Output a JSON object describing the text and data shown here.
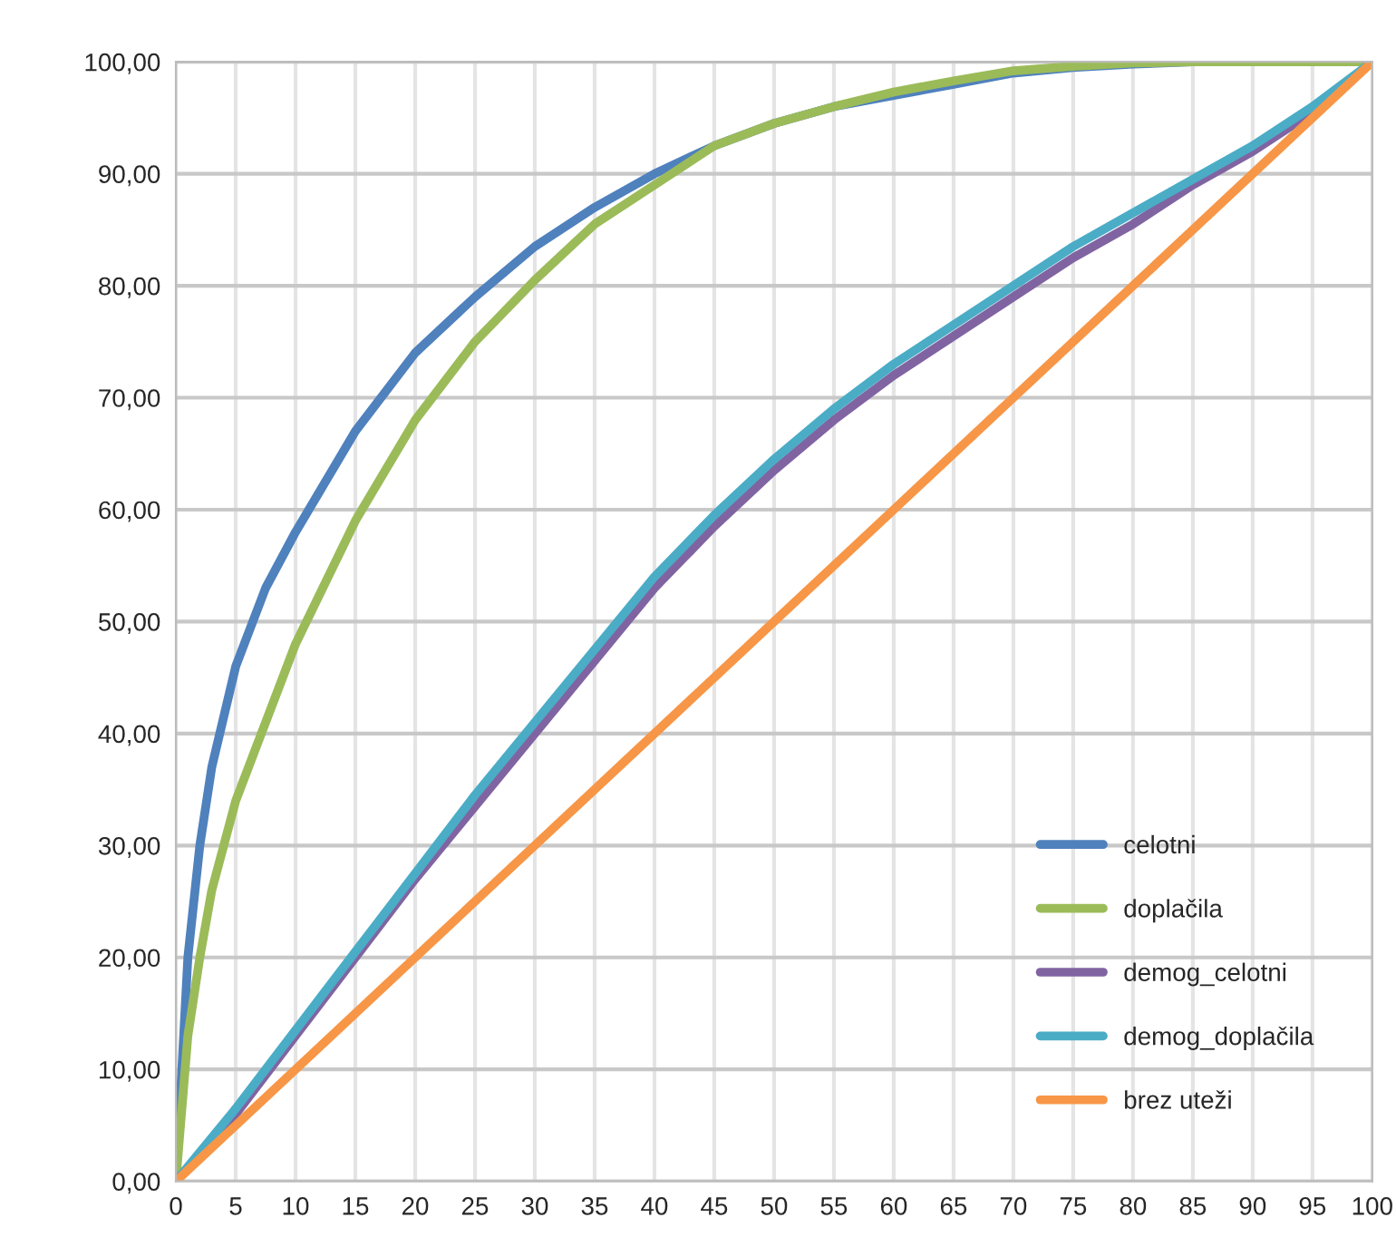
{
  "chart_data": {
    "type": "line",
    "x": [
      0,
      1,
      2,
      3,
      5,
      7.5,
      10,
      15,
      20,
      25,
      30,
      35,
      40,
      45,
      50,
      55,
      60,
      65,
      70,
      75,
      80,
      85,
      90,
      95,
      100
    ],
    "series": [
      {
        "name": "celotni",
        "color": "#4f81bd",
        "values": [
          0,
          20,
          30,
          37,
          46,
          53,
          58,
          67,
          74,
          79,
          83.5,
          87,
          90,
          92.5,
          94.5,
          96,
          97,
          98,
          99,
          99.5,
          99.8,
          100,
          100,
          100,
          100
        ]
      },
      {
        "name": "doplačila",
        "color": "#9bbb59",
        "values": [
          0,
          13,
          20,
          26,
          34,
          41,
          48,
          59,
          68,
          75,
          80.5,
          85.5,
          89,
          92.5,
          94.5,
          96,
          97.3,
          98.3,
          99.2,
          99.6,
          99.9,
          100,
          100,
          100,
          100
        ]
      },
      {
        "name": "demog_celotni",
        "color": "#8064a2",
        "x": [
          0,
          5,
          10,
          15,
          20,
          25,
          30,
          35,
          40,
          45,
          50,
          55,
          60,
          65,
          70,
          75,
          80,
          85,
          90,
          95,
          100
        ],
        "values": [
          0,
          6,
          13,
          20,
          27,
          33.5,
          40,
          46.5,
          53,
          58.5,
          63.5,
          68,
          72,
          75.5,
          79,
          82.5,
          85.5,
          89,
          92,
          95.5,
          100
        ]
      },
      {
        "name": "demog_doplačila",
        "color": "#4bacc6",
        "x": [
          0,
          5,
          10,
          15,
          20,
          25,
          30,
          35,
          40,
          45,
          50,
          55,
          60,
          65,
          70,
          75,
          80,
          85,
          90,
          95,
          100
        ],
        "values": [
          0,
          6.5,
          13.5,
          20.5,
          27.5,
          34.5,
          41,
          47.5,
          54,
          59.5,
          64.5,
          69,
          73,
          76.5,
          80,
          83.5,
          86.5,
          89.5,
          92.5,
          96,
          100
        ]
      },
      {
        "name": "brez uteži",
        "color": "#f79646",
        "x": [
          0,
          10,
          20,
          30,
          40,
          50,
          60,
          70,
          80,
          90,
          100
        ],
        "values": [
          0,
          10,
          20,
          30,
          40,
          50,
          60,
          70,
          80,
          90,
          100
        ]
      }
    ],
    "xlim": [
      0,
      100
    ],
    "xticks": [
      0,
      5,
      10,
      15,
      20,
      25,
      30,
      35,
      40,
      45,
      50,
      55,
      60,
      65,
      70,
      75,
      80,
      85,
      90,
      95,
      100
    ],
    "ylim": [
      0,
      100
    ],
    "yticks": [
      {
        "value": 0,
        "label": "0,00"
      },
      {
        "value": 10,
        "label": "10,00"
      },
      {
        "value": 20,
        "label": "20,00"
      },
      {
        "value": 30,
        "label": "30,00"
      },
      {
        "value": 40,
        "label": "40,00"
      },
      {
        "value": 50,
        "label": "50,00"
      },
      {
        "value": 60,
        "label": "60,00"
      },
      {
        "value": 70,
        "label": "70,00"
      },
      {
        "value": 80,
        "label": "80,00"
      },
      {
        "value": 90,
        "label": "90,00"
      },
      {
        "value": 100,
        "label": "100,00"
      }
    ],
    "grid": true,
    "legend": "bottom right",
    "marker": "none",
    "line_style": "solid"
  }
}
